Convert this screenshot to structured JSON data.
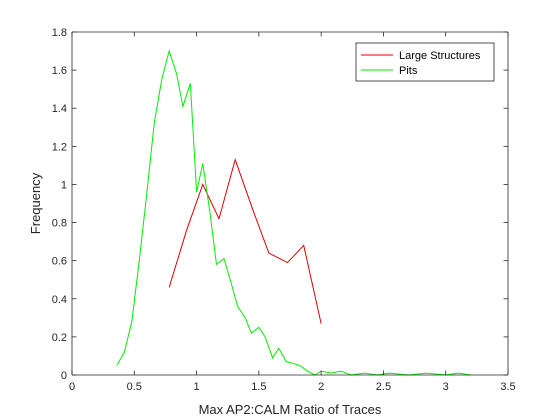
{
  "chart_data": {
    "type": "line",
    "title": "",
    "xlabel": "Max AP2:CALM Ratio of Traces",
    "ylabel": "Frequency",
    "xlim": [
      0,
      3.5
    ],
    "ylim": [
      0,
      1.8
    ],
    "xticks": [
      0,
      0.5,
      1,
      1.5,
      2,
      2.5,
      3,
      3.5
    ],
    "xtick_labels": [
      "0",
      "0.5",
      "1",
      "1.5",
      "2",
      "2.5",
      "3",
      "3.5"
    ],
    "yticks": [
      0,
      0.2,
      0.4,
      0.6,
      0.8,
      1,
      1.2,
      1.4,
      1.6,
      1.8
    ],
    "ytick_labels": [
      "0",
      "0.2",
      "0.4",
      "0.6",
      "0.8",
      "1",
      "1.2",
      "1.4",
      "1.6",
      "1.8"
    ],
    "grid": false,
    "legend_position": "top-right",
    "series": [
      {
        "name": "Large Structures",
        "color": "#dd0000",
        "x": [
          0.78,
          0.92,
          1.05,
          1.18,
          1.31,
          1.45,
          1.58,
          1.73,
          1.86,
          2.0
        ],
        "y": [
          0.46,
          0.76,
          1.0,
          0.82,
          1.13,
          0.87,
          0.64,
          0.59,
          0.68,
          0.27
        ]
      },
      {
        "name": "Pits",
        "color": "#00ee00",
        "x": [
          0.36,
          0.42,
          0.48,
          0.54,
          0.6,
          0.66,
          0.72,
          0.78,
          0.84,
          0.89,
          0.95,
          1.0,
          1.05,
          1.11,
          1.16,
          1.22,
          1.27,
          1.33,
          1.39,
          1.44,
          1.5,
          1.55,
          1.61,
          1.66,
          1.72,
          1.78,
          1.83,
          1.89,
          1.95,
          2.0,
          2.08,
          2.16,
          2.24,
          2.35,
          2.45,
          2.55,
          2.7,
          2.85,
          3.0,
          3.1,
          3.2
        ],
        "y": [
          0.05,
          0.12,
          0.28,
          0.6,
          0.95,
          1.32,
          1.55,
          1.7,
          1.58,
          1.41,
          1.53,
          0.96,
          1.11,
          0.84,
          0.58,
          0.61,
          0.5,
          0.36,
          0.3,
          0.22,
          0.25,
          0.2,
          0.09,
          0.14,
          0.07,
          0.06,
          0.05,
          0.02,
          0.0,
          0.02,
          0.01,
          0.02,
          0.0,
          0.01,
          0.0,
          0.01,
          0.0,
          0.01,
          0.0,
          0.01,
          0.0
        ]
      }
    ]
  }
}
